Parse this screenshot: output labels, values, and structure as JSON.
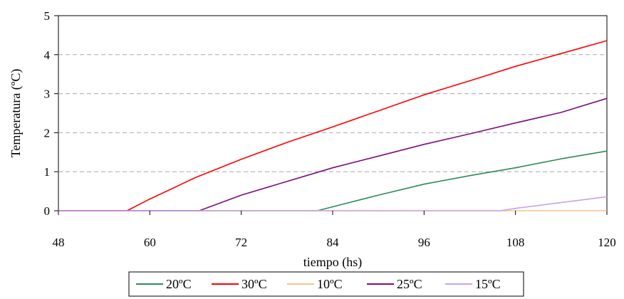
{
  "chart_data": {
    "type": "line",
    "title": "",
    "xlabel": "tiempo (hs)",
    "ylabel": "Temperatura (ºC)",
    "xlim": [
      48,
      120
    ],
    "ylim": [
      0,
      5
    ],
    "xticks": [
      48,
      60,
      72,
      84,
      96,
      108,
      120
    ],
    "yticks": [
      0,
      1,
      2,
      3,
      4,
      5
    ],
    "grid": "horizontal-dashed",
    "legend": "bottom",
    "series": [
      {
        "name": "20ºC",
        "color": "#2E8B57",
        "points": [
          [
            48,
            0
          ],
          [
            82,
            0
          ],
          [
            86,
            0.2
          ],
          [
            90,
            0.4
          ],
          [
            96,
            0.68
          ],
          [
            102,
            0.9
          ],
          [
            108,
            1.1
          ],
          [
            114,
            1.33
          ],
          [
            120,
            1.53
          ]
        ]
      },
      {
        "name": "30ºC",
        "color": "#FF0000",
        "points": [
          [
            48,
            0
          ],
          [
            57,
            0
          ],
          [
            60,
            0.3
          ],
          [
            66,
            0.85
          ],
          [
            72,
            1.32
          ],
          [
            78,
            1.75
          ],
          [
            84,
            2.15
          ],
          [
            90,
            2.56
          ],
          [
            96,
            2.97
          ],
          [
            102,
            3.33
          ],
          [
            108,
            3.7
          ],
          [
            114,
            4.03
          ],
          [
            120,
            4.36
          ]
        ]
      },
      {
        "name": "10ºC",
        "color": "#F5C48A",
        "points": [
          [
            48,
            0
          ],
          [
            120,
            0
          ]
        ]
      },
      {
        "name": "25ºC",
        "color": "#7B0D7E",
        "points": [
          [
            48,
            0
          ],
          [
            66.5,
            0
          ],
          [
            72,
            0.4
          ],
          [
            78,
            0.75
          ],
          [
            84,
            1.1
          ],
          [
            90,
            1.4
          ],
          [
            96,
            1.7
          ],
          [
            102,
            1.97
          ],
          [
            108,
            2.25
          ],
          [
            114,
            2.52
          ],
          [
            120,
            2.88
          ]
        ]
      },
      {
        "name": "15ºC",
        "color": "#C8A2E8",
        "points": [
          [
            48,
            0
          ],
          [
            106,
            0
          ],
          [
            108,
            0.06
          ],
          [
            112,
            0.16
          ],
          [
            116,
            0.26
          ],
          [
            120,
            0.36
          ]
        ]
      }
    ]
  }
}
